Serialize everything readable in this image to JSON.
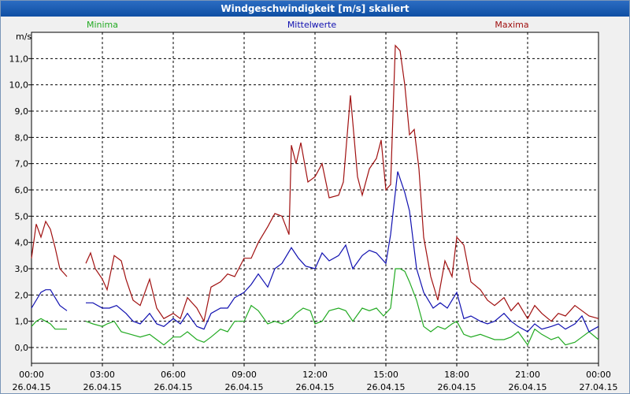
{
  "window": {
    "title": "Windgeschwindigkeit [m/s] skaliert"
  },
  "colors": {
    "minima": "#22aa22",
    "mittelwerte": "#1010b0",
    "maxima": "#a01010",
    "grid": "#000000"
  },
  "chart_data": {
    "type": "line",
    "title": "Windgeschwindigkeit [m/s] skaliert",
    "ylabel": "m/s",
    "xlabel": "",
    "ylim": [
      -0.6,
      12.0
    ],
    "xlim_hours": [
      0,
      24
    ],
    "grid": true,
    "legend_position": "top",
    "y_ticks": [
      "0,0",
      "1,0",
      "2,0",
      "3,0",
      "4,0",
      "5,0",
      "6,0",
      "7,0",
      "8,0",
      "9,0",
      "10,0",
      "11,0"
    ],
    "x_ticks": [
      {
        "time": "00:00",
        "date": "26.04.15"
      },
      {
        "time": "03:00",
        "date": "26.04.15"
      },
      {
        "time": "06:00",
        "date": "26.04.15"
      },
      {
        "time": "09:00",
        "date": "26.04.15"
      },
      {
        "time": "12:00",
        "date": "26.04.15"
      },
      {
        "time": "15:00",
        "date": "26.04.15"
      },
      {
        "time": "18:00",
        "date": "26.04.15"
      },
      {
        "time": "21:00",
        "date": "26.04.15"
      },
      {
        "time": "00:00",
        "date": "27.04.15"
      }
    ],
    "series": [
      {
        "name": "Minima",
        "segments": [
          [
            [
              0.0,
              0.8
            ],
            [
              0.2,
              1.0
            ],
            [
              0.4,
              1.1
            ],
            [
              0.6,
              1.0
            ],
            [
              0.8,
              0.9
            ],
            [
              1.0,
              0.7
            ],
            [
              1.3,
              0.7
            ],
            [
              1.5,
              0.7
            ]
          ],
          [
            [
              2.3,
              1.0
            ],
            [
              2.6,
              0.9
            ],
            [
              3.0,
              0.8
            ],
            [
              3.2,
              0.9
            ],
            [
              3.5,
              1.0
            ],
            [
              3.8,
              0.6
            ],
            [
              4.2,
              0.5
            ],
            [
              4.6,
              0.4
            ],
            [
              5.0,
              0.5
            ],
            [
              5.3,
              0.3
            ],
            [
              5.6,
              0.1
            ],
            [
              6.0,
              0.4
            ],
            [
              6.3,
              0.4
            ],
            [
              6.6,
              0.6
            ],
            [
              7.0,
              0.3
            ],
            [
              7.3,
              0.2
            ],
            [
              7.6,
              0.4
            ],
            [
              8.0,
              0.7
            ],
            [
              8.3,
              0.6
            ],
            [
              8.6,
              1.0
            ],
            [
              9.0,
              1.0
            ],
            [
              9.3,
              1.6
            ],
            [
              9.6,
              1.4
            ],
            [
              10.0,
              0.9
            ],
            [
              10.3,
              1.0
            ],
            [
              10.6,
              0.9
            ],
            [
              11.0,
              1.1
            ],
            [
              11.2,
              1.3
            ],
            [
              11.5,
              1.5
            ],
            [
              11.8,
              1.4
            ],
            [
              12.0,
              0.9
            ],
            [
              12.3,
              1.0
            ],
            [
              12.6,
              1.4
            ],
            [
              13.0,
              1.5
            ],
            [
              13.3,
              1.4
            ],
            [
              13.6,
              1.0
            ],
            [
              14.0,
              1.5
            ],
            [
              14.3,
              1.4
            ],
            [
              14.6,
              1.5
            ],
            [
              14.9,
              1.2
            ],
            [
              15.2,
              1.5
            ],
            [
              15.4,
              3.0
            ],
            [
              15.6,
              3.0
            ],
            [
              15.8,
              2.9
            ],
            [
              16.0,
              2.5
            ],
            [
              16.3,
              1.8
            ],
            [
              16.6,
              0.8
            ],
            [
              16.9,
              0.6
            ],
            [
              17.2,
              0.8
            ],
            [
              17.5,
              0.7
            ],
            [
              17.8,
              0.9
            ],
            [
              18.0,
              1.0
            ],
            [
              18.3,
              0.5
            ],
            [
              18.6,
              0.4
            ],
            [
              19.0,
              0.5
            ],
            [
              19.3,
              0.4
            ],
            [
              19.6,
              0.3
            ],
            [
              20.0,
              0.3
            ],
            [
              20.3,
              0.4
            ],
            [
              20.6,
              0.6
            ],
            [
              21.0,
              0.1
            ],
            [
              21.3,
              0.7
            ],
            [
              21.6,
              0.5
            ],
            [
              22.0,
              0.3
            ],
            [
              22.3,
              0.4
            ],
            [
              22.6,
              0.1
            ],
            [
              23.0,
              0.2
            ],
            [
              23.3,
              0.4
            ],
            [
              23.6,
              0.6
            ],
            [
              24.0,
              0.3
            ]
          ]
        ]
      },
      {
        "name": "Mittelwerte",
        "segments": [
          [
            [
              0.0,
              1.5
            ],
            [
              0.2,
              1.8
            ],
            [
              0.4,
              2.1
            ],
            [
              0.6,
              2.2
            ],
            [
              0.8,
              2.2
            ],
            [
              1.0,
              1.9
            ],
            [
              1.2,
              1.6
            ],
            [
              1.5,
              1.4
            ]
          ],
          [
            [
              2.3,
              1.7
            ],
            [
              2.6,
              1.7
            ],
            [
              3.0,
              1.5
            ],
            [
              3.3,
              1.5
            ],
            [
              3.6,
              1.6
            ],
            [
              4.0,
              1.3
            ],
            [
              4.3,
              1.0
            ],
            [
              4.6,
              0.9
            ],
            [
              5.0,
              1.3
            ],
            [
              5.3,
              0.9
            ],
            [
              5.6,
              0.8
            ],
            [
              6.0,
              1.1
            ],
            [
              6.3,
              0.9
            ],
            [
              6.6,
              1.3
            ],
            [
              7.0,
              0.8
            ],
            [
              7.3,
              0.7
            ],
            [
              7.6,
              1.3
            ],
            [
              8.0,
              1.5
            ],
            [
              8.3,
              1.5
            ],
            [
              8.6,
              1.9
            ],
            [
              9.0,
              2.1
            ],
            [
              9.3,
              2.4
            ],
            [
              9.6,
              2.8
            ],
            [
              10.0,
              2.3
            ],
            [
              10.3,
              3.0
            ],
            [
              10.6,
              3.2
            ],
            [
              11.0,
              3.8
            ],
            [
              11.3,
              3.4
            ],
            [
              11.6,
              3.1
            ],
            [
              12.0,
              3.0
            ],
            [
              12.3,
              3.6
            ],
            [
              12.6,
              3.3
            ],
            [
              13.0,
              3.5
            ],
            [
              13.3,
              3.9
            ],
            [
              13.6,
              3.0
            ],
            [
              14.0,
              3.5
            ],
            [
              14.3,
              3.7
            ],
            [
              14.6,
              3.6
            ],
            [
              15.0,
              3.2
            ],
            [
              15.2,
              4.3
            ],
            [
              15.5,
              6.7
            ],
            [
              15.8,
              5.9
            ],
            [
              16.0,
              5.2
            ],
            [
              16.3,
              3.0
            ],
            [
              16.6,
              2.1
            ],
            [
              17.0,
              1.5
            ],
            [
              17.3,
              1.7
            ],
            [
              17.6,
              1.5
            ],
            [
              18.0,
              2.1
            ],
            [
              18.3,
              1.1
            ],
            [
              18.6,
              1.2
            ],
            [
              19.0,
              1.0
            ],
            [
              19.3,
              0.9
            ],
            [
              19.6,
              1.0
            ],
            [
              20.0,
              1.3
            ],
            [
              20.3,
              1.0
            ],
            [
              20.6,
              0.8
            ],
            [
              21.0,
              0.6
            ],
            [
              21.3,
              0.9
            ],
            [
              21.6,
              0.7
            ],
            [
              22.0,
              0.8
            ],
            [
              22.3,
              0.9
            ],
            [
              22.6,
              0.7
            ],
            [
              23.0,
              0.9
            ],
            [
              23.3,
              1.2
            ],
            [
              23.6,
              0.6
            ],
            [
              24.0,
              0.8
            ]
          ]
        ]
      },
      {
        "name": "Maxima",
        "segments": [
          [
            [
              0.0,
              3.4
            ],
            [
              0.2,
              4.7
            ],
            [
              0.4,
              4.2
            ],
            [
              0.6,
              4.8
            ],
            [
              0.8,
              4.5
            ],
            [
              1.0,
              3.8
            ],
            [
              1.2,
              3.0
            ],
            [
              1.5,
              2.7
            ]
          ],
          [
            [
              2.3,
              3.2
            ],
            [
              2.5,
              3.6
            ],
            [
              2.7,
              3.0
            ],
            [
              3.0,
              2.6
            ],
            [
              3.2,
              2.2
            ],
            [
              3.5,
              3.5
            ],
            [
              3.8,
              3.3
            ],
            [
              4.0,
              2.6
            ],
            [
              4.3,
              1.8
            ],
            [
              4.6,
              1.6
            ],
            [
              5.0,
              2.6
            ],
            [
              5.3,
              1.5
            ],
            [
              5.6,
              1.1
            ],
            [
              6.0,
              1.3
            ],
            [
              6.3,
              1.1
            ],
            [
              6.6,
              1.9
            ],
            [
              7.0,
              1.5
            ],
            [
              7.3,
              1.0
            ],
            [
              7.6,
              2.3
            ],
            [
              8.0,
              2.5
            ],
            [
              8.3,
              2.8
            ],
            [
              8.6,
              2.7
            ],
            [
              9.0,
              3.4
            ],
            [
              9.3,
              3.4
            ],
            [
              9.6,
              4.0
            ],
            [
              10.0,
              4.6
            ],
            [
              10.3,
              5.1
            ],
            [
              10.6,
              5.0
            ],
            [
              10.9,
              4.3
            ],
            [
              11.0,
              7.7
            ],
            [
              11.2,
              7.0
            ],
            [
              11.4,
              7.8
            ],
            [
              11.7,
              6.3
            ],
            [
              12.0,
              6.5
            ],
            [
              12.3,
              7.0
            ],
            [
              12.6,
              5.7
            ],
            [
              13.0,
              5.8
            ],
            [
              13.2,
              6.3
            ],
            [
              13.5,
              9.6
            ],
            [
              13.8,
              6.5
            ],
            [
              14.0,
              5.8
            ],
            [
              14.3,
              6.8
            ],
            [
              14.6,
              7.2
            ],
            [
              14.8,
              7.9
            ],
            [
              15.0,
              6.0
            ],
            [
              15.2,
              6.2
            ],
            [
              15.4,
              11.5
            ],
            [
              15.6,
              11.3
            ],
            [
              15.8,
              10.0
            ],
            [
              16.0,
              8.1
            ],
            [
              16.2,
              8.3
            ],
            [
              16.4,
              6.8
            ],
            [
              16.6,
              4.2
            ],
            [
              16.9,
              2.7
            ],
            [
              17.2,
              1.8
            ],
            [
              17.5,
              3.3
            ],
            [
              17.8,
              2.7
            ],
            [
              18.0,
              4.2
            ],
            [
              18.3,
              3.9
            ],
            [
              18.6,
              2.5
            ],
            [
              19.0,
              2.2
            ],
            [
              19.3,
              1.8
            ],
            [
              19.6,
              1.6
            ],
            [
              20.0,
              1.9
            ],
            [
              20.3,
              1.4
            ],
            [
              20.6,
              1.7
            ],
            [
              21.0,
              1.1
            ],
            [
              21.3,
              1.6
            ],
            [
              21.6,
              1.3
            ],
            [
              22.0,
              1.0
            ],
            [
              22.3,
              1.3
            ],
            [
              22.6,
              1.2
            ],
            [
              23.0,
              1.6
            ],
            [
              23.3,
              1.4
            ],
            [
              23.6,
              1.2
            ],
            [
              24.0,
              1.1
            ]
          ]
        ]
      }
    ]
  }
}
